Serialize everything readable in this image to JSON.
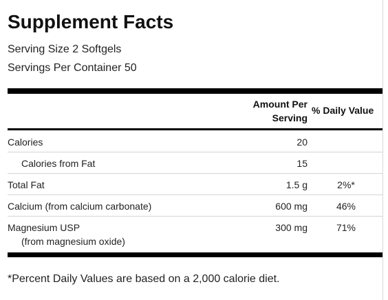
{
  "title": "Supplement Facts",
  "serving_size": "Serving Size 2 Softgels",
  "servings_per_container": "Servings Per Container 50",
  "header": {
    "amount_line1": "Amount Per",
    "amount_line2": "Serving",
    "daily_value": "% Daily Value"
  },
  "rows": [
    {
      "name": "Calories",
      "amount": "20",
      "dv": ""
    },
    {
      "name": "Calories from Fat",
      "amount": "15",
      "dv": ""
    },
    {
      "name": "Total Fat",
      "amount": "1.5 g",
      "dv": "2%*"
    },
    {
      "name": "Calcium (from calcium carbonate)",
      "amount": "600 mg",
      "dv": "46%"
    },
    {
      "name": "Magnesium USP",
      "subname": "(from magnesium oxide)",
      "amount": "300 mg",
      "dv": "71%"
    }
  ],
  "footnote": "*Percent Daily Values are based on a 2,000 calorie diet."
}
